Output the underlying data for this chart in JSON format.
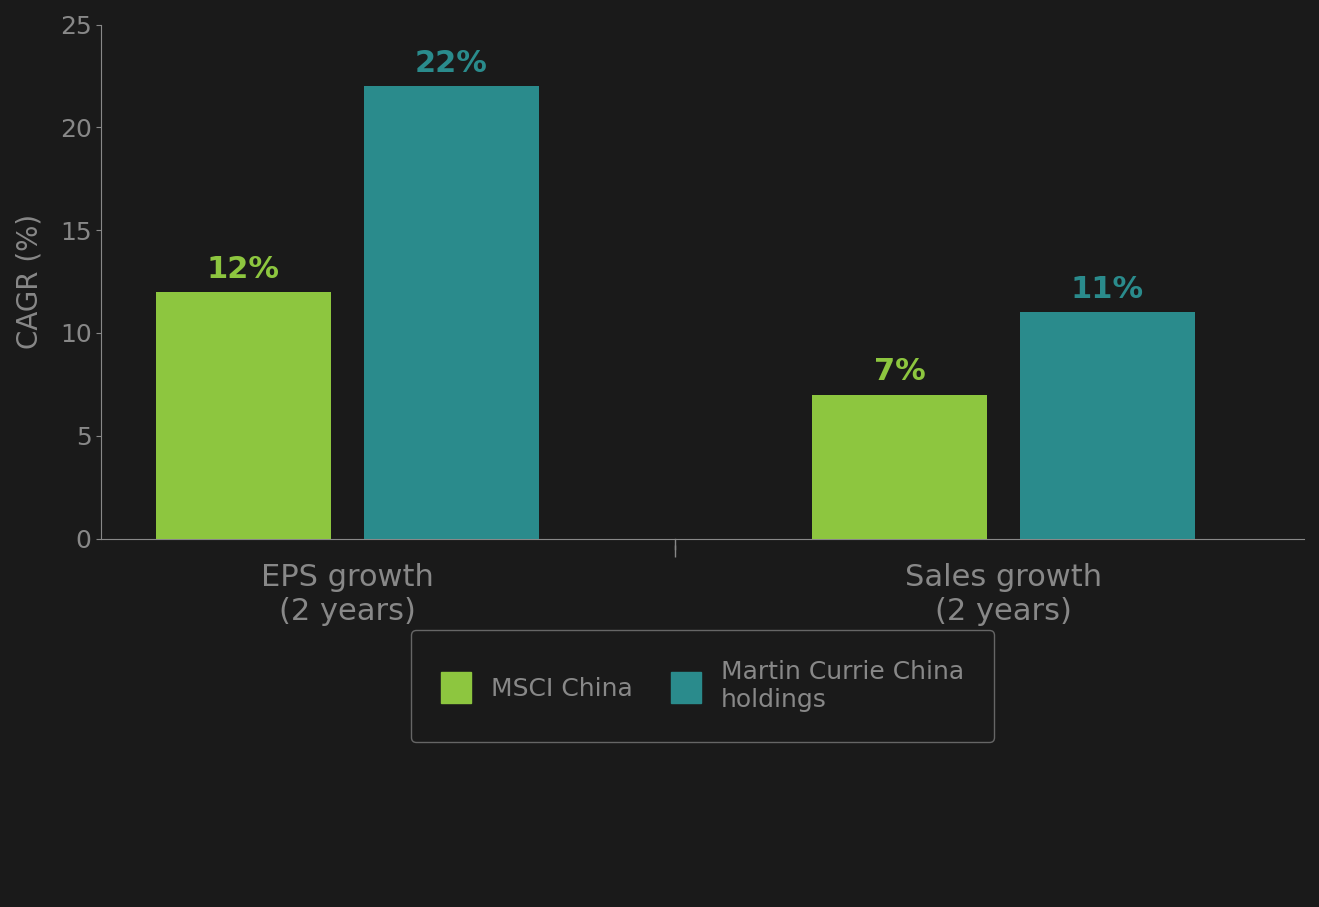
{
  "groups": [
    "EPS growth\n(2 years)",
    "Sales growth\n(2 years)"
  ],
  "msci_values": [
    12,
    7
  ],
  "martin_values": [
    22,
    11
  ],
  "msci_color": "#8DC63F",
  "martin_color": "#2A8B8C",
  "msci_label": "MSCI China",
  "martin_label": "Martin Currie China\nholdings",
  "ylabel": "CAGR (%)",
  "ylim": [
    0,
    25
  ],
  "yticks": [
    0,
    5,
    10,
    15,
    20,
    25
  ],
  "bar_width": 0.32,
  "background_color": "#1A1A1A",
  "plot_area_color": "#1A1A1A",
  "label_fontsize": 22,
  "axis_label_fontsize": 20,
  "tick_fontsize": 18,
  "legend_fontsize": 18,
  "value_label_fontsize": 22,
  "axis_color": "#888888",
  "tick_color": "#888888",
  "text_color": "#888888"
}
